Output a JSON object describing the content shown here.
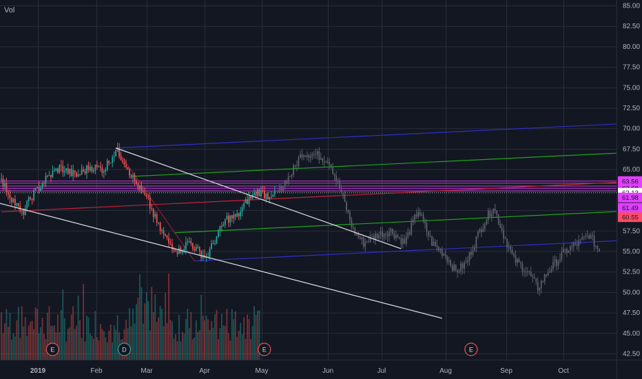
{
  "indicator_label": "Vol",
  "colors": {
    "background": "#131722",
    "grid": "#2a2e39",
    "axis_text": "#b2b5be",
    "candle_up": "#26a69a",
    "candle_down": "#ef5350",
    "projection_candle": "#5d606b",
    "level_line": "#e040fb",
    "trend_line": "#e0e3eb",
    "pitchfork_outer": "#2f2fc8",
    "pitchfork_inner": "#1fa51f",
    "pitchfork_median": "#c8223a"
  },
  "chart_data": {
    "type": "candlestick",
    "title": "",
    "y_axis_side": "right",
    "ylim": [
      41.5,
      85.5
    ],
    "y_ticks": [
      "85.00",
      "82.50",
      "80.00",
      "77.50",
      "75.00",
      "72.50",
      "70.00",
      "67.50",
      "65.00",
      "62.50",
      "60.00",
      "57.50",
      "55.00",
      "52.50",
      "50.00",
      "47.50",
      "45.00",
      "42.50"
    ],
    "x_ticks": [
      "2019",
      "Feb",
      "Mar",
      "Apr",
      "May",
      "Jun",
      "Jul",
      "Aug",
      "Sep",
      "Oct"
    ],
    "price_tags": [
      {
        "label": "63.56",
        "value": 63.56,
        "color": "#e040fb"
      },
      {
        "label": "62.68",
        "value": 62.68,
        "color": "#e040fb"
      },
      {
        "label": "62.13",
        "value": 62.13,
        "color": "#ffffff"
      },
      {
        "label": "61.98",
        "value": 61.55,
        "color": "#e040fb"
      },
      {
        "label": "61.49",
        "value": 60.3,
        "color": "#e040fb"
      },
      {
        "label": "60.55",
        "value": 59.15,
        "color": "#ff4a68"
      }
    ],
    "horizontal_levels": [
      63.56,
      63.3,
      62.95,
      62.68,
      62.35,
      62.13
    ],
    "events": [
      {
        "label": "E",
        "date_index": 38
      },
      {
        "label": "D",
        "date_index": 80
      },
      {
        "label": "E",
        "date_index": 162
      },
      {
        "label": "E",
        "date_index": 283
      }
    ],
    "price_anchors": [
      {
        "i": 0,
        "close": 63.5
      },
      {
        "i": 6,
        "close": 61.5
      },
      {
        "i": 12,
        "close": 59.5
      },
      {
        "i": 18,
        "close": 61.8
      },
      {
        "i": 26,
        "close": 63.8
      },
      {
        "i": 34,
        "close": 65.2
      },
      {
        "i": 44,
        "close": 64.2
      },
      {
        "i": 52,
        "close": 65.3
      },
      {
        "i": 60,
        "close": 65.0
      },
      {
        "i": 67,
        "close": 67.3
      },
      {
        "i": 72,
        "close": 66.0
      },
      {
        "i": 78,
        "close": 63.5
      },
      {
        "i": 86,
        "close": 61.0
      },
      {
        "i": 92,
        "close": 58.0
      },
      {
        "i": 98,
        "close": 56.0
      },
      {
        "i": 104,
        "close": 55.0
      },
      {
        "i": 110,
        "close": 56.2
      },
      {
        "i": 114,
        "close": 55.2
      },
      {
        "i": 120,
        "close": 54.2
      },
      {
        "i": 126,
        "close": 56.8
      },
      {
        "i": 132,
        "close": 59.0
      },
      {
        "i": 138,
        "close": 59.2
      },
      {
        "i": 144,
        "close": 61.2
      },
      {
        "i": 150,
        "close": 62.3
      },
      {
        "i": 156,
        "close": 61.8
      },
      {
        "i": 160,
        "close": 62.3
      }
    ],
    "projection_anchors": [
      {
        "i": 162,
        "close": 62.2
      },
      {
        "i": 170,
        "close": 64.6
      },
      {
        "i": 176,
        "close": 67.0
      },
      {
        "i": 184,
        "close": 66.8
      },
      {
        "i": 192,
        "close": 66.0
      },
      {
        "i": 200,
        "close": 61.5
      },
      {
        "i": 206,
        "close": 57.5
      },
      {
        "i": 212,
        "close": 56.0
      },
      {
        "i": 220,
        "close": 57.0
      },
      {
        "i": 228,
        "close": 57.5
      },
      {
        "i": 236,
        "close": 56.0
      },
      {
        "i": 244,
        "close": 60.0
      },
      {
        "i": 252,
        "close": 56.0
      },
      {
        "i": 260,
        "close": 54.5
      },
      {
        "i": 266,
        "close": 52.5
      },
      {
        "i": 272,
        "close": 53.5
      },
      {
        "i": 280,
        "close": 57.5
      },
      {
        "i": 288,
        "close": 60.5
      },
      {
        "i": 294,
        "close": 57.0
      },
      {
        "i": 300,
        "close": 54.0
      },
      {
        "i": 308,
        "close": 52.5
      },
      {
        "i": 314,
        "close": 50.5
      },
      {
        "i": 320,
        "close": 52.5
      },
      {
        "i": 330,
        "close": 55.0
      },
      {
        "i": 338,
        "close": 56.0
      },
      {
        "i": 344,
        "close": 57.0
      },
      {
        "i": 350,
        "close": 55.0
      }
    ],
    "trend_lines": [
      {
        "name": "upper-descending",
        "from": {
          "i": 67,
          "v": 67.6
        },
        "to": {
          "i": 234,
          "v": 55.3
        }
      },
      {
        "name": "lower-support",
        "from": {
          "i": -2,
          "v": 60.9
        },
        "to": {
          "i": 258,
          "v": 46.8
        }
      }
    ],
    "pitchfork": {
      "pivot_a": {
        "i": 0,
        "v": 59.8
      },
      "pivot_b": {
        "i": 67,
        "v": 67.6
      },
      "pivot_c": {
        "i": 113,
        "v": 53.8
      },
      "end_i": 360
    },
    "volume": {
      "max": 1.0
    }
  }
}
